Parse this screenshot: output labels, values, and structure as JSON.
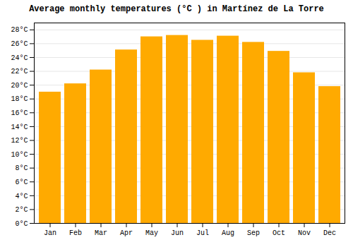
{
  "chart_data": {
    "type": "bar",
    "title": "Average monthly temperatures (°C ) in Martí­nez de La Torre",
    "categories": [
      "Jan",
      "Feb",
      "Mar",
      "Apr",
      "May",
      "Jun",
      "Jul",
      "Aug",
      "Sep",
      "Oct",
      "Nov",
      "Dec"
    ],
    "values": [
      19.0,
      20.2,
      22.2,
      25.1,
      27.0,
      27.2,
      26.5,
      27.1,
      26.2,
      24.9,
      21.8,
      19.8
    ],
    "color": "#FFAA00",
    "ylim": [
      0,
      29
    ],
    "yticks": [
      {
        "value": 0,
        "label": "0°C"
      },
      {
        "value": 2,
        "label": "2°C"
      },
      {
        "value": 4,
        "label": "4°C"
      },
      {
        "value": 6,
        "label": "6°C"
      },
      {
        "value": 8,
        "label": "8°C"
      },
      {
        "value": 10,
        "label": "10°C"
      },
      {
        "value": 12,
        "label": "12°C"
      },
      {
        "value": 14,
        "label": "14°C"
      },
      {
        "value": 16,
        "label": "16°C"
      },
      {
        "value": 18,
        "label": "18°C"
      },
      {
        "value": 20,
        "label": "20°C"
      },
      {
        "value": 22,
        "label": "22°C"
      },
      {
        "value": 24,
        "label": "24°C"
      },
      {
        "value": 26,
        "label": "26°C"
      },
      {
        "value": 28,
        "label": "28°C"
      }
    ],
    "grid": true
  }
}
